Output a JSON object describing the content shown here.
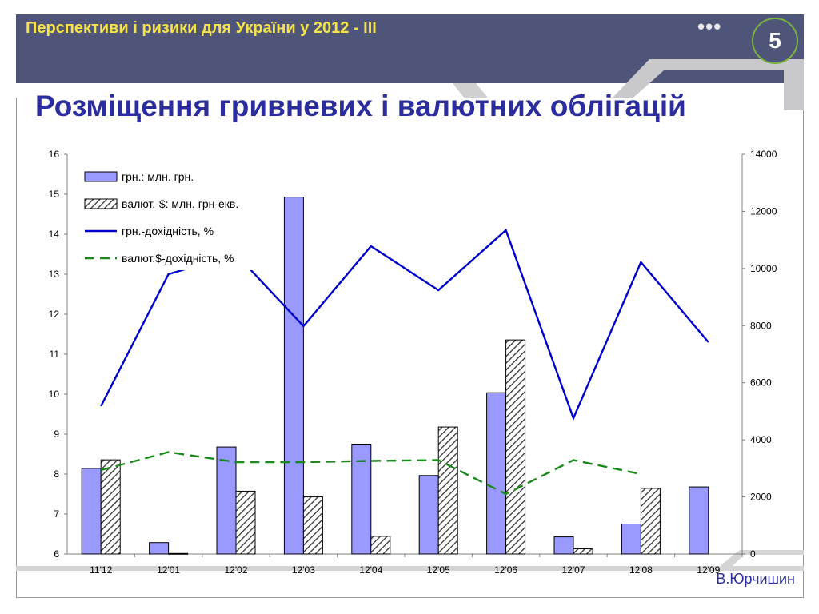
{
  "header": {
    "title": "Перспективи і ризики для України у 2012 - III",
    "dots": "•••",
    "slide_number": "5"
  },
  "main_title": "Розміщення гривневих і валютних облігацій",
  "author": "В.Юрчишин",
  "colors": {
    "band": "#4f5578",
    "header_text": "#f6e24a",
    "title": "#2b2c9e",
    "bar_uah": "#9999ff",
    "line_uah": "#0000cc",
    "line_fx": "#1a8a1a"
  },
  "chart_data": {
    "type": "bar",
    "categories": [
      "11'12",
      "12'01",
      "12'02",
      "12'03",
      "12'04",
      "12'05",
      "12'06",
      "12'07",
      "12'08",
      "12'09"
    ],
    "y_left": {
      "min": 6,
      "max": 16,
      "ticks": [
        "6",
        "7",
        "8",
        "9",
        "10",
        "11",
        "12",
        "13",
        "14",
        "15",
        "16"
      ]
    },
    "y_right": {
      "min": 0,
      "max": 14000,
      "ticks": [
        "0",
        "2000",
        "4000",
        "6000",
        "8000",
        "10000",
        "12000",
        "14000"
      ]
    },
    "legend_position": "top-left",
    "series": [
      {
        "name": "грн.: млн. грн.",
        "kind": "bar",
        "axis": "right",
        "pattern": "solid",
        "values": [
          3000,
          400,
          3750,
          12500,
          3850,
          2750,
          5650,
          600,
          1050,
          2350
        ]
      },
      {
        "name": "валют.-$: млн. грн-екв.",
        "kind": "bar",
        "axis": "right",
        "pattern": "hatched",
        "values": [
          3300,
          20,
          2200,
          2000,
          620,
          4450,
          7500,
          180,
          2300,
          null
        ]
      },
      {
        "name": "грн.-дохідність, %",
        "kind": "line",
        "axis": "left",
        "dash": "solid",
        "values": [
          9.7,
          13.0,
          13.5,
          11.7,
          13.7,
          12.6,
          14.1,
          9.4,
          13.3,
          11.3
        ]
      },
      {
        "name": "валют.$-дохідність, %",
        "kind": "line",
        "axis": "left",
        "dash": "dashed",
        "values": [
          8.1,
          8.55,
          8.3,
          8.3,
          8.33,
          8.35,
          7.5,
          8.35,
          8.0,
          null
        ]
      }
    ]
  }
}
